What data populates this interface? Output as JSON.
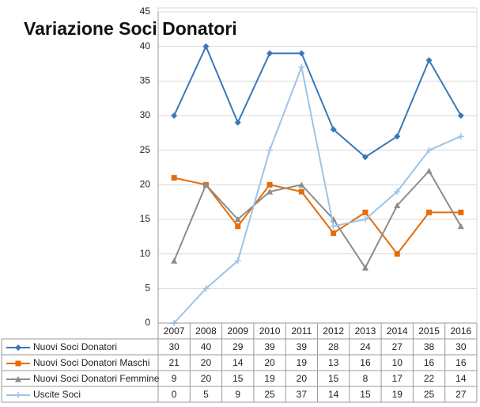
{
  "chart_data": {
    "type": "line",
    "title": "Variazione Soci Donatori",
    "categories": [
      "2007",
      "2008",
      "2009",
      "2010",
      "2011",
      "2012",
      "2013",
      "2014",
      "2015",
      "2016"
    ],
    "series": [
      {
        "name": "Nuovi Soci Donatori",
        "color": "#3a78b9",
        "marker": "diamond",
        "values": [
          30,
          40,
          29,
          39,
          39,
          28,
          24,
          27,
          38,
          30
        ]
      },
      {
        "name": "Nuovi Soci Donatori Maschi",
        "color": "#e46c0a",
        "marker": "square",
        "values": [
          21,
          20,
          14,
          20,
          19,
          13,
          16,
          10,
          16,
          16
        ]
      },
      {
        "name": "Nuovi Soci Donatori Femmine",
        "color": "#8c8c8c",
        "marker": "triangle",
        "values": [
          9,
          20,
          15,
          19,
          20,
          15,
          8,
          17,
          22,
          14
        ]
      },
      {
        "name": "Uscite Soci",
        "color": "#9dc3e6",
        "marker": "plus",
        "values": [
          0,
          5,
          9,
          25,
          37,
          14,
          15,
          19,
          25,
          27
        ]
      }
    ],
    "ylim": [
      0,
      45
    ],
    "yticks": [
      0,
      5,
      10,
      15,
      20,
      25,
      30,
      35,
      40,
      45
    ],
    "grid": true
  }
}
